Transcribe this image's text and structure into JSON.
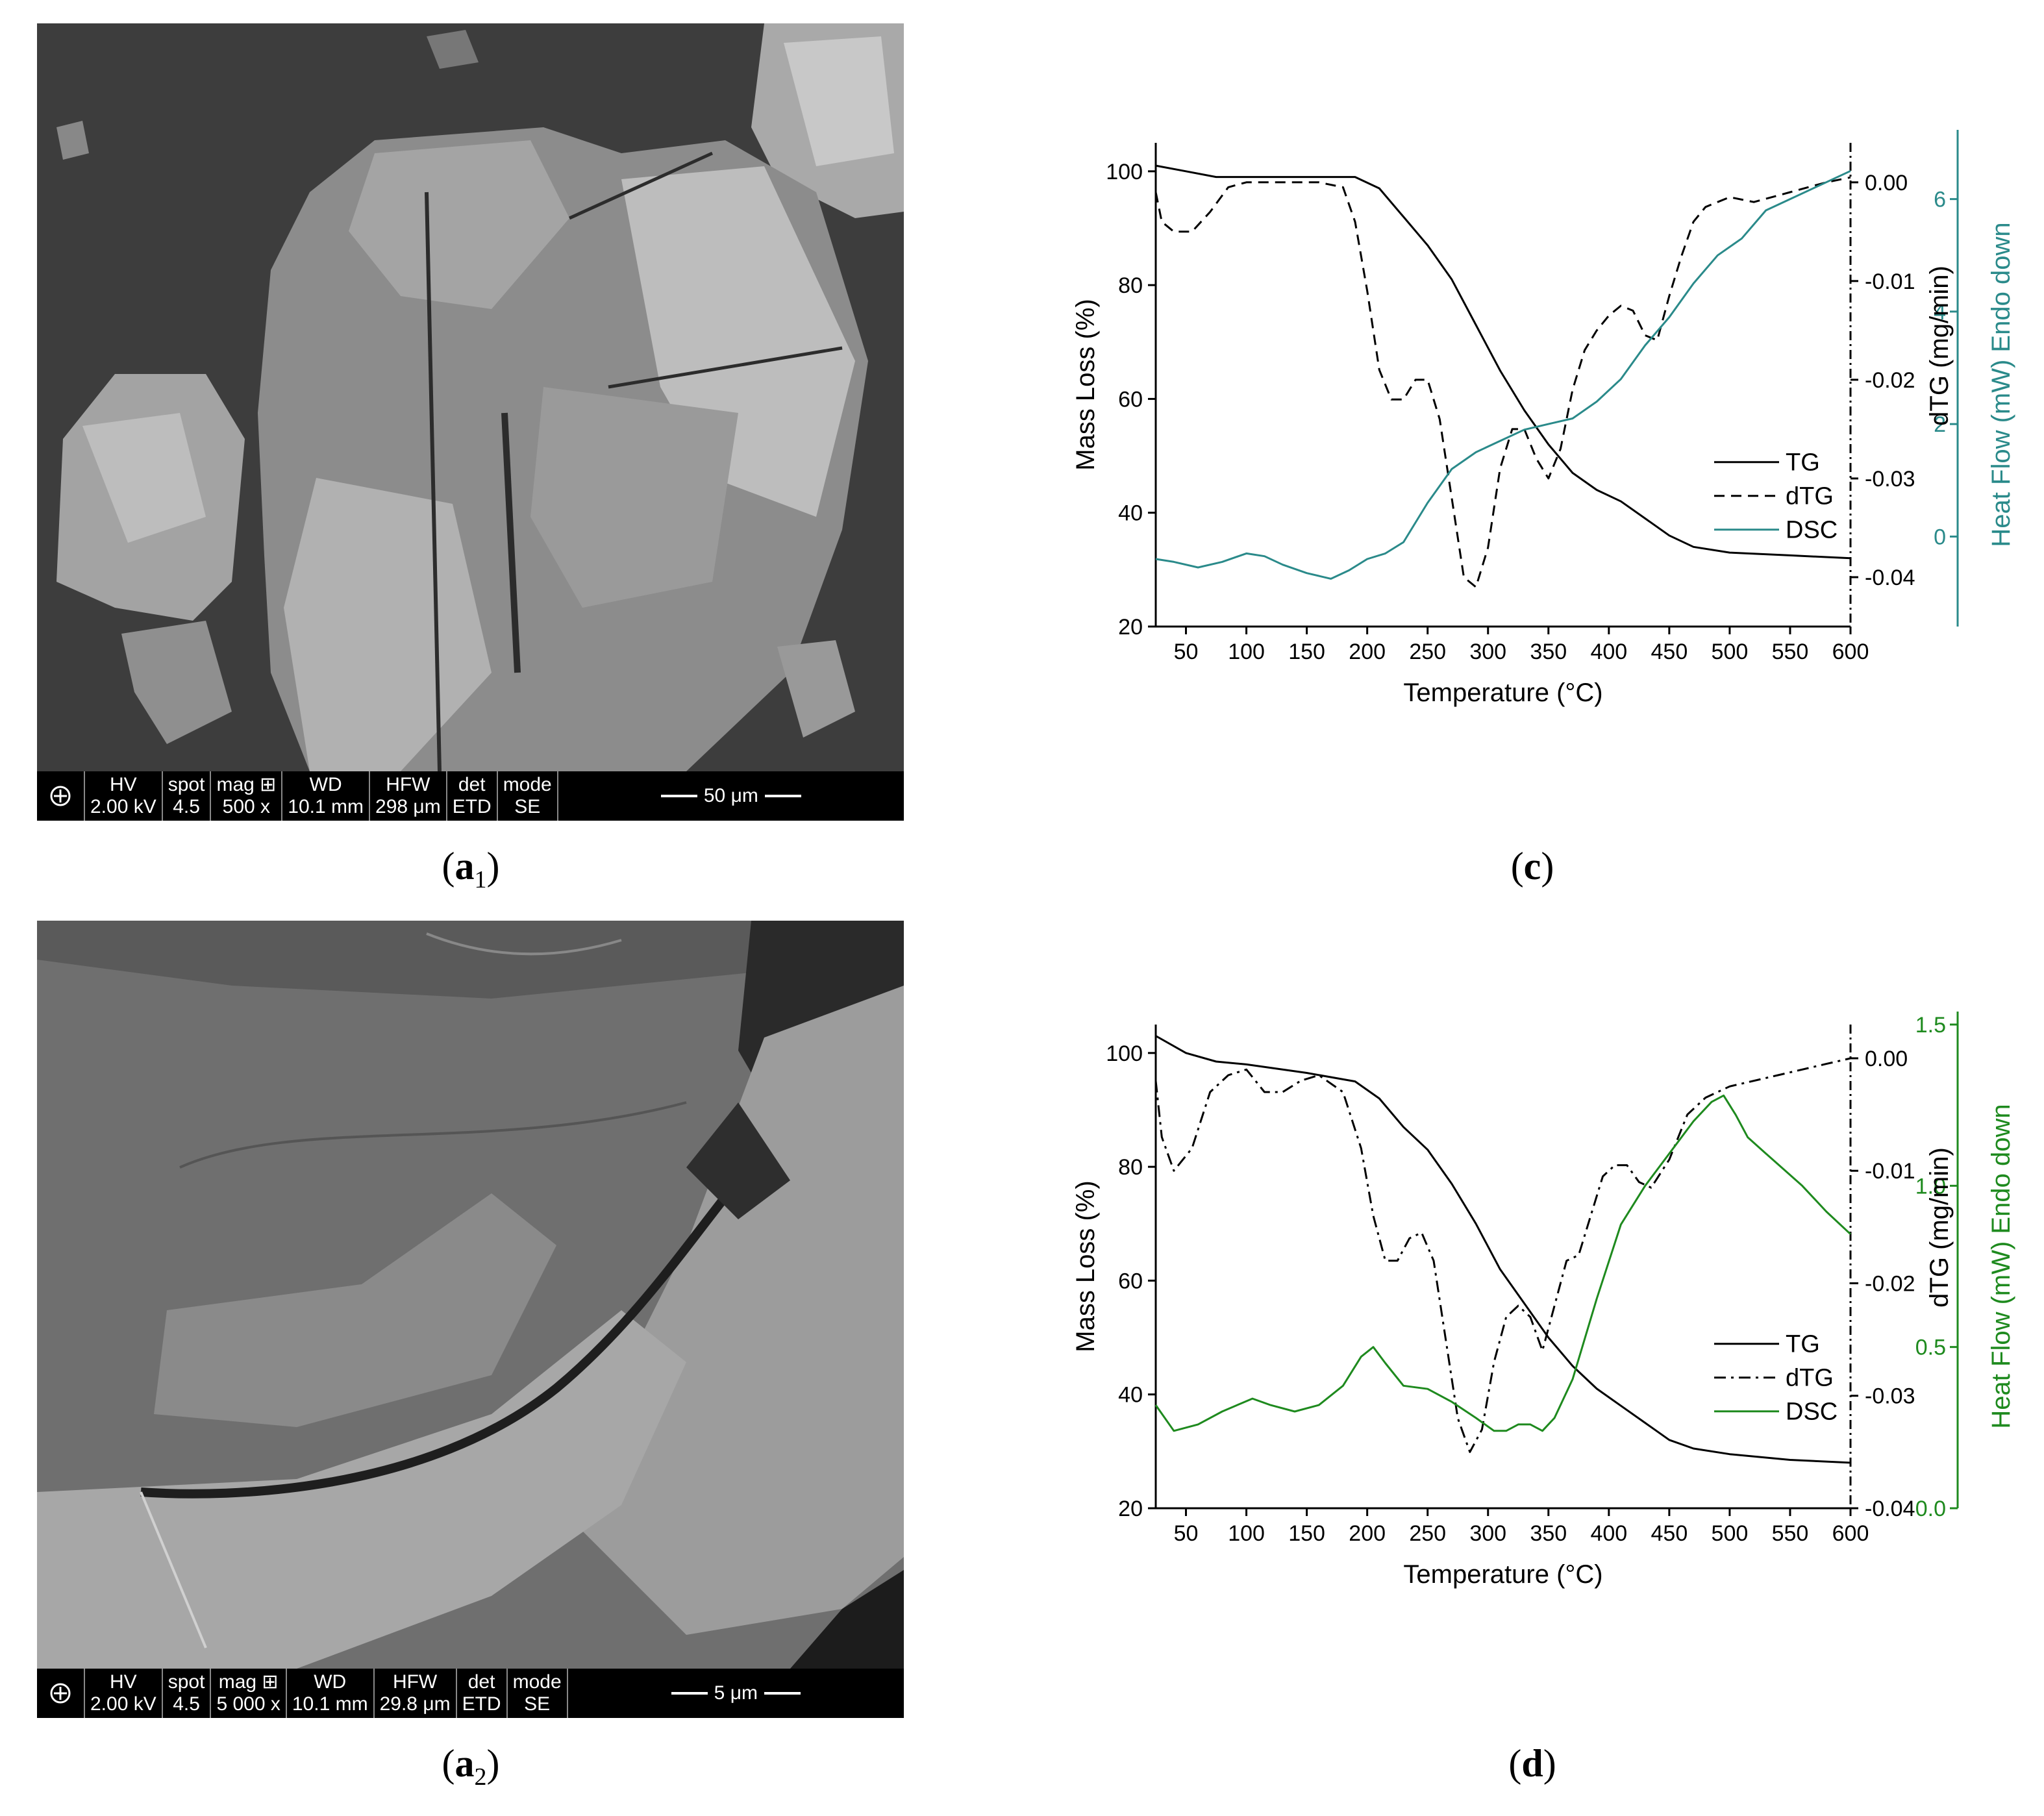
{
  "figure": {
    "panels": [
      {
        "id": "a1",
        "caption_open": "(",
        "caption_letter": "a",
        "caption_sub": "1",
        "caption_close": ")",
        "sem": {
          "headers": [
            "HV",
            "spot",
            "mag ⊞",
            "WD",
            "HFW",
            "det",
            "mode"
          ],
          "values": [
            "2.00 kV",
            "4.5",
            "500 x",
            "10.1 mm",
            "298 μm",
            "ETD",
            "SE"
          ],
          "scale_bar": "50 μm"
        }
      },
      {
        "id": "a2",
        "caption_open": "(",
        "caption_letter": "a",
        "caption_sub": "2",
        "caption_close": ")",
        "sem": {
          "headers": [
            "HV",
            "spot",
            "mag ⊞",
            "WD",
            "HFW",
            "det",
            "mode"
          ],
          "values": [
            "2.00 kV",
            "4.5",
            "5 000 x",
            "10.1 mm",
            "29.8 μm",
            "ETD",
            "SE"
          ],
          "scale_bar": "5 μm"
        }
      }
    ],
    "captions": {
      "c": "c",
      "d": "d"
    }
  },
  "chart_data": [
    {
      "id": "c",
      "type": "line",
      "xlabel": "Temperature (°C)",
      "ylabel_left": "Mass Loss (%)",
      "ylabel_right1": "dTG (mg/min)",
      "ylabel_right2": "Heat Flow (mW) Endo down",
      "xlim": [
        25,
        600
      ],
      "ylim_left": [
        20,
        105
      ],
      "ylim_right1": [
        -0.045,
        0.004
      ],
      "ylim_right2": [
        -1.6,
        7
      ],
      "xticks": [
        50,
        100,
        150,
        200,
        250,
        300,
        350,
        400,
        450,
        500,
        550,
        600
      ],
      "yticks_left": [
        20,
        40,
        60,
        80,
        100
      ],
      "yticks_right1": [
        0.0,
        -0.01,
        -0.02,
        -0.03,
        -0.04
      ],
      "yticks_right1_labels": [
        "0.00",
        "-0.01",
        "-0.02",
        "-0.03",
        "-0.04"
      ],
      "yticks_right2": [
        0,
        2,
        4,
        6
      ],
      "right2_color": "#2a8a8a",
      "legend_position": "center-right",
      "series": [
        {
          "name": "TG",
          "axis": "left",
          "color": "#000000",
          "dash": "solid",
          "x": [
            25,
            50,
            75,
            100,
            150,
            190,
            210,
            230,
            250,
            270,
            290,
            310,
            330,
            350,
            370,
            390,
            410,
            430,
            450,
            470,
            500,
            550,
            600
          ],
          "y": [
            101,
            100,
            99,
            99,
            99,
            99,
            97,
            92,
            87,
            81,
            73,
            65,
            58,
            52,
            47,
            44,
            42,
            39,
            36,
            34,
            33,
            32.5,
            32
          ]
        },
        {
          "name": "dTG",
          "axis": "right1",
          "color": "#000000",
          "dash": "dashed",
          "x": [
            25,
            30,
            40,
            55,
            70,
            85,
            100,
            130,
            160,
            180,
            190,
            200,
            210,
            220,
            230,
            240,
            250,
            260,
            270,
            280,
            290,
            300,
            310,
            320,
            330,
            340,
            350,
            360,
            370,
            380,
            390,
            400,
            410,
            420,
            430,
            440,
            450,
            460,
            470,
            480,
            490,
            500,
            520,
            550,
            580,
            600
          ],
          "y": [
            -0.001,
            -0.004,
            -0.005,
            -0.005,
            -0.003,
            -0.0005,
            0.0,
            0.0,
            0.0,
            -0.0005,
            -0.004,
            -0.011,
            -0.019,
            -0.022,
            -0.022,
            -0.02,
            -0.02,
            -0.024,
            -0.032,
            -0.04,
            -0.041,
            -0.037,
            -0.029,
            -0.025,
            -0.025,
            -0.028,
            -0.03,
            -0.027,
            -0.021,
            -0.017,
            -0.015,
            -0.0135,
            -0.0125,
            -0.013,
            -0.0155,
            -0.016,
            -0.0115,
            -0.0075,
            -0.004,
            -0.0025,
            -0.002,
            -0.0015,
            -0.002,
            -0.001,
            0.0,
            0.0005
          ]
        },
        {
          "name": "DSC",
          "axis": "right2",
          "color": "#2a8a8a",
          "dash": "solid",
          "x": [
            25,
            40,
            60,
            80,
            100,
            115,
            130,
            150,
            170,
            185,
            200,
            215,
            230,
            250,
            270,
            290,
            310,
            330,
            350,
            370,
            390,
            410,
            430,
            450,
            470,
            490,
            510,
            530,
            550,
            570,
            600
          ],
          "y": [
            -0.4,
            -0.45,
            -0.55,
            -0.45,
            -0.3,
            -0.35,
            -0.5,
            -0.65,
            -0.75,
            -0.6,
            -0.4,
            -0.3,
            -0.1,
            0.6,
            1.2,
            1.5,
            1.7,
            1.9,
            2.0,
            2.1,
            2.4,
            2.8,
            3.4,
            3.9,
            4.5,
            5.0,
            5.3,
            5.8,
            6.0,
            6.2,
            6.5
          ]
        }
      ]
    },
    {
      "id": "d",
      "type": "line",
      "xlabel": "Temperature (°C)",
      "ylabel_left": "Mass Loss (%)",
      "ylabel_right1": "dTG (mg/min)",
      "ylabel_right2": "Heat Flow (mW) Endo down",
      "xlim": [
        25,
        600
      ],
      "ylim_left": [
        20,
        105
      ],
      "ylim_right1": [
        -0.04,
        0.003
      ],
      "ylim_right2": [
        0,
        1.5
      ],
      "xticks": [
        50,
        100,
        150,
        200,
        250,
        300,
        350,
        400,
        450,
        500,
        550,
        600
      ],
      "yticks_left": [
        20,
        40,
        60,
        80,
        100
      ],
      "yticks_right1": [
        0.0,
        -0.01,
        -0.02,
        -0.03,
        -0.04
      ],
      "yticks_right1_labels": [
        "0.00",
        "-0.01",
        "-0.02",
        "-0.03",
        "-0.04"
      ],
      "yticks_right2": [
        0.0,
        0.5,
        1.0,
        1.5
      ],
      "yticks_right2_labels": [
        "0.0",
        "0.5",
        "1.0",
        "1.5"
      ],
      "right2_color": "#1e8a1e",
      "legend_position": "center-right",
      "series": [
        {
          "name": "TG",
          "axis": "left",
          "color": "#000000",
          "dash": "solid",
          "x": [
            25,
            50,
            75,
            100,
            150,
            190,
            210,
            230,
            250,
            270,
            290,
            310,
            330,
            350,
            370,
            390,
            410,
            430,
            450,
            470,
            500,
            550,
            600
          ],
          "y": [
            103,
            100,
            98.5,
            98,
            96.5,
            95,
            92,
            87,
            83,
            77,
            70,
            62,
            56,
            50,
            45,
            41,
            38,
            35,
            32,
            30.5,
            29.5,
            28.5,
            28
          ]
        },
        {
          "name": "dTG",
          "axis": "right1",
          "color": "#000000",
          "dash": "dashdot",
          "x": [
            25,
            30,
            40,
            55,
            70,
            85,
            100,
            115,
            130,
            145,
            160,
            180,
            195,
            205,
            215,
            225,
            235,
            245,
            255,
            265,
            275,
            285,
            295,
            305,
            315,
            325,
            335,
            345,
            355,
            365,
            375,
            385,
            395,
            405,
            415,
            425,
            435,
            450,
            465,
            480,
            500,
            540,
            580,
            600
          ],
          "y": [
            -0.002,
            -0.007,
            -0.01,
            -0.008,
            -0.003,
            -0.0015,
            -0.001,
            -0.003,
            -0.003,
            -0.002,
            -0.0015,
            -0.003,
            -0.008,
            -0.014,
            -0.018,
            -0.018,
            -0.016,
            -0.0155,
            -0.018,
            -0.025,
            -0.032,
            -0.035,
            -0.033,
            -0.027,
            -0.023,
            -0.022,
            -0.023,
            -0.026,
            -0.022,
            -0.018,
            -0.0175,
            -0.014,
            -0.0105,
            -0.0095,
            -0.0095,
            -0.011,
            -0.0115,
            -0.009,
            -0.005,
            -0.0035,
            -0.0025,
            -0.0015,
            -0.0005,
            0.0
          ]
        },
        {
          "name": "DSC",
          "axis": "right2",
          "color": "#1e8a1e",
          "dash": "solid",
          "x": [
            25,
            40,
            60,
            80,
            105,
            120,
            140,
            160,
            180,
            195,
            205,
            215,
            230,
            250,
            270,
            290,
            305,
            315,
            325,
            335,
            345,
            355,
            370,
            390,
            410,
            430,
            450,
            470,
            485,
            495,
            505,
            515,
            530,
            545,
            560,
            580,
            600
          ],
          "y": [
            0.32,
            0.24,
            0.26,
            0.3,
            0.34,
            0.32,
            0.3,
            0.32,
            0.38,
            0.47,
            0.5,
            0.45,
            0.38,
            0.37,
            0.33,
            0.28,
            0.24,
            0.24,
            0.26,
            0.26,
            0.24,
            0.28,
            0.4,
            0.65,
            0.88,
            1.0,
            1.1,
            1.2,
            1.26,
            1.28,
            1.22,
            1.15,
            1.1,
            1.05,
            1.0,
            0.92,
            0.85
          ]
        }
      ]
    }
  ]
}
